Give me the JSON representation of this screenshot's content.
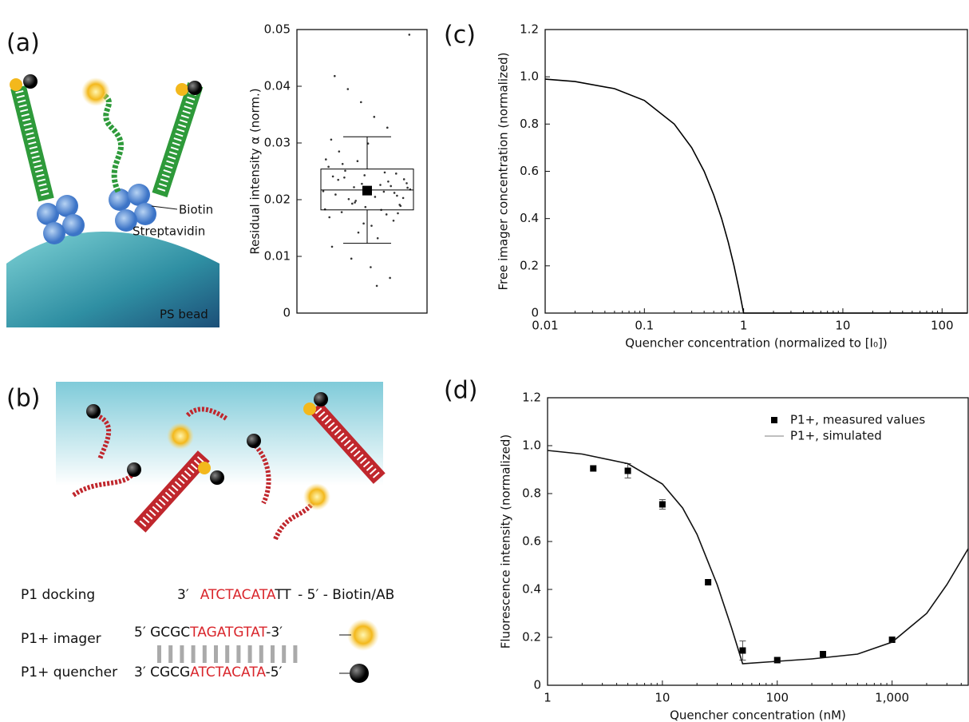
{
  "panel_labels": [
    "(a)",
    "(b)",
    "(c)",
    "(d)"
  ],
  "illustration_a": {
    "biotin": "Biotin",
    "streptavidin": "Streptavidin",
    "bead": "PS bead"
  },
  "sequences": {
    "docking": {
      "label": "P1 docking",
      "prefix": "3′",
      "red": "ATCTACATA",
      "tail": "TT",
      "suffix": "- 5′ - Biotin/AB"
    },
    "imager": {
      "label": "P1+ imager",
      "prefix": "5′ GCGC",
      "red": "TAGATGTAT",
      "suffix": "-3′"
    },
    "quencher": {
      "label": "P1+ quencher",
      "prefix": "3′ CGCG",
      "red": "ATCTACATA",
      "suffix": "-5′"
    }
  },
  "chart_data": [
    {
      "type": "box",
      "y_label": "Residual intensity α (norm.)",
      "ylim": [
        0,
        0.05
      ],
      "yticks": [
        0,
        0.01,
        0.02,
        0.03,
        0.04,
        0.05
      ],
      "whisker_low": 0.0123,
      "q1": 0.0182,
      "median": 0.0217,
      "q3": 0.0254,
      "whisker_high": 0.0311,
      "mean": 0.0216,
      "color": "#000000",
      "points": [
        0.0215,
        0.0198,
        0.0232,
        0.0241,
        0.0187,
        0.0176,
        0.0263,
        0.0205,
        0.0221,
        0.0193,
        0.0248,
        0.0169,
        0.0228,
        0.0212,
        0.0285,
        0.0154,
        0.0236,
        0.0201,
        0.0182,
        0.0271,
        0.0142,
        0.0224,
        0.0209,
        0.0299,
        0.0189,
        0.0251,
        0.0132,
        0.0218,
        0.0195,
        0.0327,
        0.0117,
        0.0243,
        0.0207,
        0.0178,
        0.0346,
        0.0229,
        0.0096,
        0.0214,
        0.0258,
        0.0372,
        0.0163,
        0.0235,
        0.0081,
        0.0203,
        0.0395,
        0.0226,
        0.0183,
        0.0268,
        0.0062,
        0.0418,
        0.0211,
        0.0191,
        0.0239,
        0.0048,
        0.0491,
        0.0222,
        0.0174,
        0.0306,
        0.0158,
        0.0246
      ]
    },
    {
      "type": "line",
      "x_label": "Quencher concentration (normalized to [I₀])",
      "y_label": "Free imager concentration (normalized)",
      "log_x": true,
      "xlim": [
        0.01,
        180
      ],
      "xticks": [
        0.01,
        0.1,
        1,
        10,
        100
      ],
      "ylim": [
        0,
        1.2
      ],
      "yticks": [
        0,
        0.2,
        0.4,
        0.6,
        0.8,
        {
          "value": 1,
          "label": "1.0"
        },
        1.2
      ],
      "color": "#000000",
      "x": [
        0.01,
        0.02,
        0.05,
        0.1,
        0.2,
        0.3,
        0.4,
        0.5,
        0.6,
        0.7,
        0.8,
        0.9,
        1,
        2,
        10,
        100,
        180
      ],
      "values": [
        0.99,
        0.98,
        0.95,
        0.9,
        0.8,
        0.7,
        0.6,
        0.5,
        0.4,
        0.3,
        0.2,
        0.1,
        0,
        0,
        0,
        0,
        0
      ]
    },
    {
      "type": "scatter-line",
      "x_label": "Quencher concentration (nM)",
      "y_label": "Fluorescence intensity (normalized)",
      "log_x": true,
      "xlim": [
        1,
        4600
      ],
      "xticks": [
        1,
        10,
        100,
        {
          "value": 1000,
          "label": "1,000"
        }
      ],
      "ylim": [
        0,
        1.2
      ],
      "yticks": [
        0,
        0.2,
        0.4,
        0.6,
        0.8,
        {
          "value": 1,
          "label": "1.0"
        },
        1.2
      ],
      "legend": "upper right",
      "series": [
        {
          "name": "P1+, measured values",
          "color": "#000000",
          "x": [
            2.5,
            5,
            10,
            25,
            50,
            100,
            250,
            1000
          ],
          "values": [
            0.905,
            0.895,
            0.755,
            0.43,
            0.145,
            0.105,
            0.13,
            0.19
          ],
          "errors": [
            null,
            0.03,
            0.02,
            null,
            0.04,
            null,
            null,
            null
          ]
        },
        {
          "name": "P1+, simulated",
          "color": "#111111",
          "x": [
            1,
            2,
            5,
            10,
            15,
            20,
            30,
            40,
            50,
            100,
            200,
            500,
            1000,
            2000,
            3000,
            4600
          ],
          "values": [
            0.98,
            0.965,
            0.925,
            0.84,
            0.74,
            0.63,
            0.42,
            0.24,
            0.09,
            0.1,
            0.11,
            0.13,
            0.18,
            0.3,
            0.42,
            0.57
          ]
        }
      ]
    }
  ]
}
